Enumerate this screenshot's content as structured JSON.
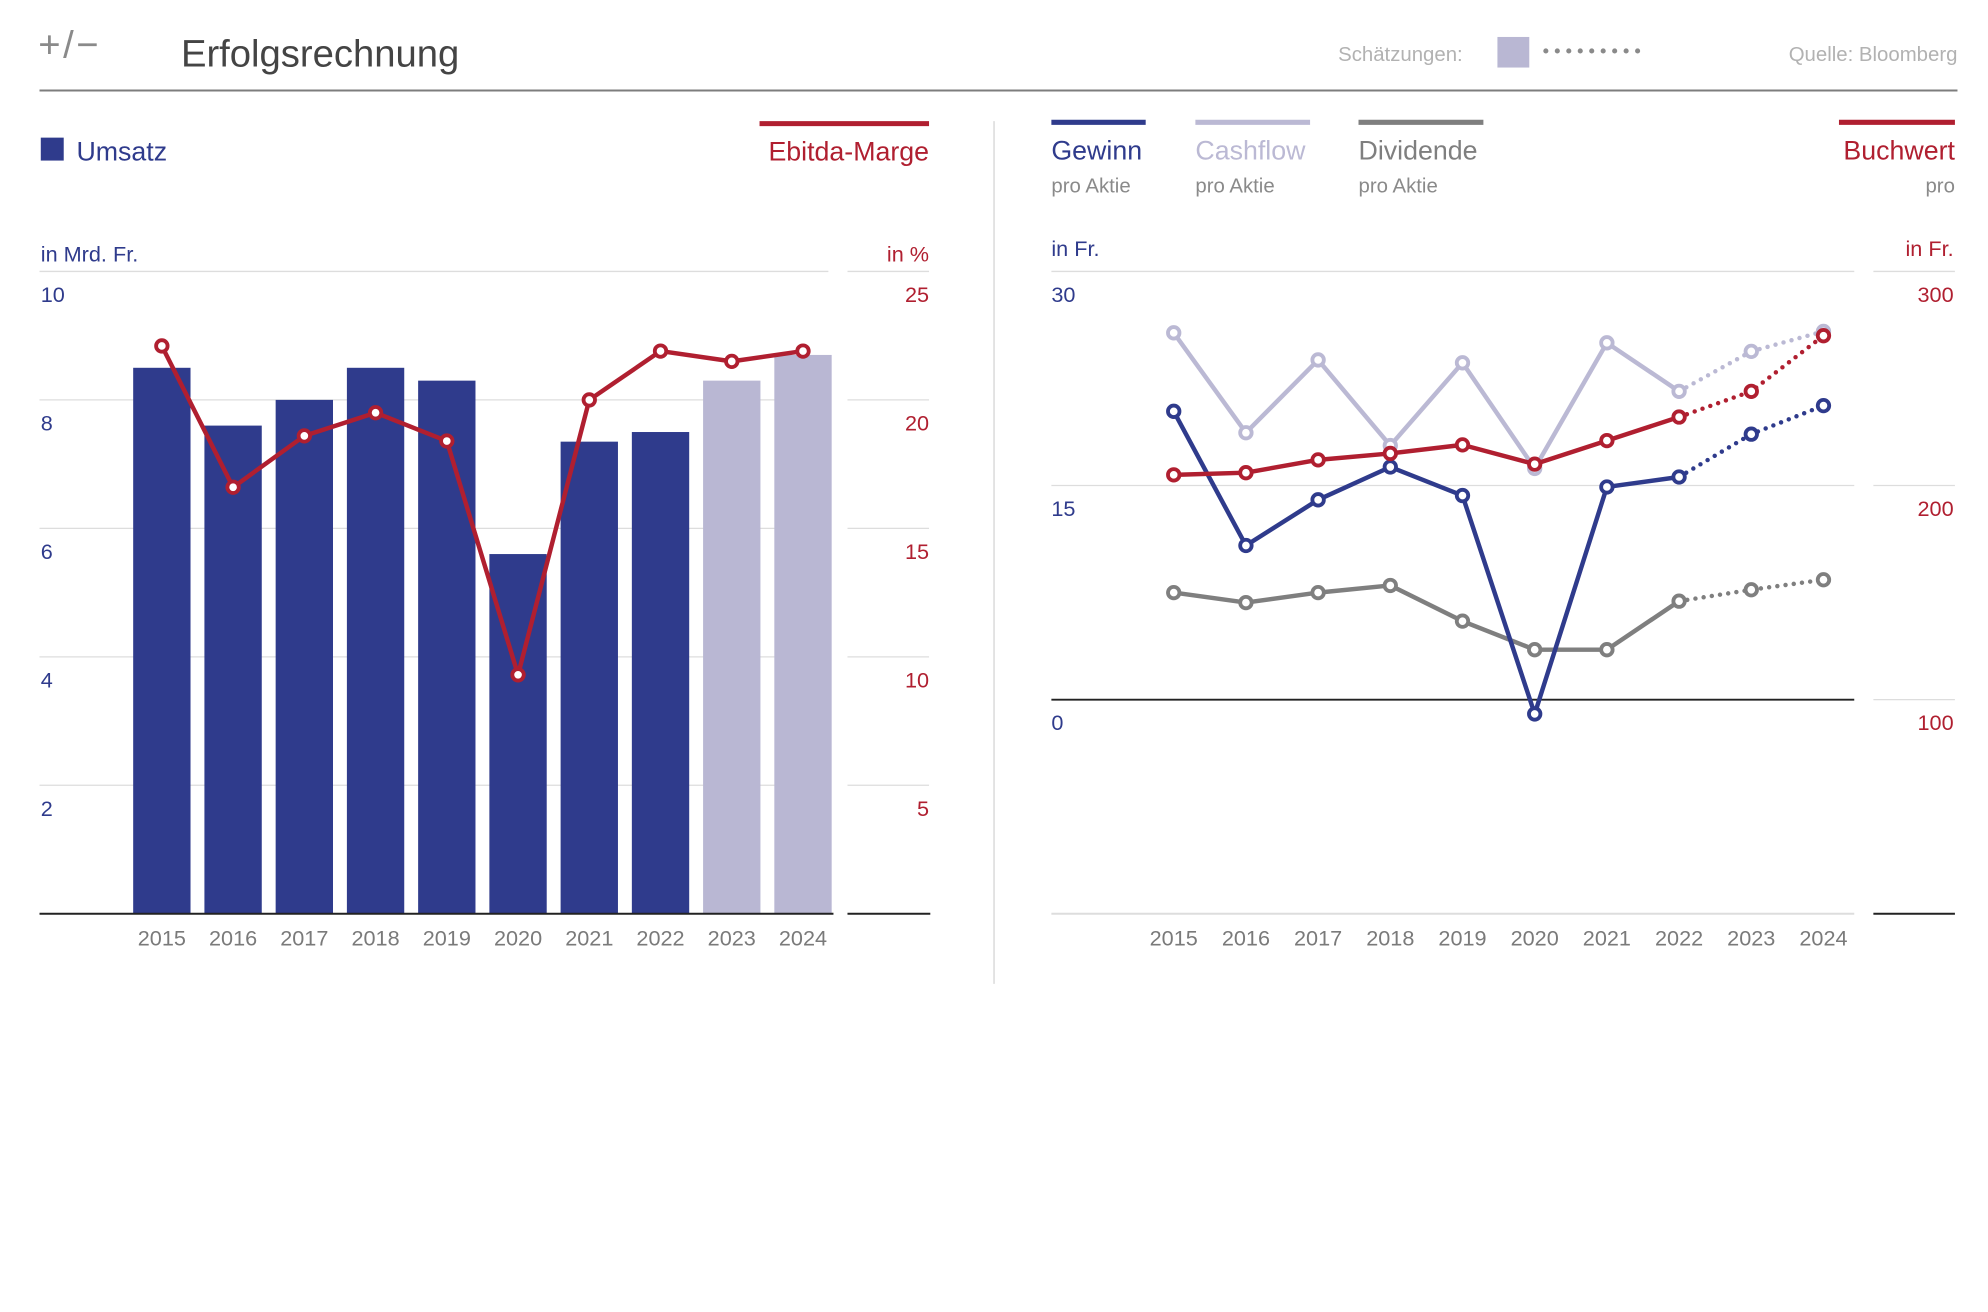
{
  "header": {
    "logo": "+/−",
    "title": "Erfolgsrechnung",
    "estimates_label": "Schätzungen:",
    "source": "Quelle: Bloomberg"
  },
  "colors": {
    "blue": "#2f3b8c",
    "estimate_bar": "#b9b7d3",
    "red": "#b01f30",
    "light": "#bbb9d4",
    "gray": "#7f7f7f",
    "axis_blue": "#2f3b8c",
    "axis_red": "#b01f30"
  },
  "chart_data": [
    {
      "type": "bar",
      "title": "",
      "categories": [
        "2015",
        "2016",
        "2017",
        "2018",
        "2019",
        "2020",
        "2021",
        "2022",
        "2023",
        "2024"
      ],
      "estimate_from_index": 8,
      "series": [
        {
          "name": "Umsatz",
          "unit": "in Mrd. Fr.",
          "axis": "left",
          "type": "bar",
          "values": [
            8.5,
            7.6,
            8.0,
            8.5,
            8.3,
            5.6,
            7.35,
            7.5,
            8.3,
            8.7
          ]
        },
        {
          "name": "Ebitda-Marge",
          "unit": "in %",
          "axis": "right",
          "type": "line",
          "values": [
            22.1,
            16.6,
            18.6,
            19.5,
            18.4,
            9.3,
            20.0,
            21.9,
            21.5,
            21.9
          ]
        }
      ],
      "yleft": {
        "label": "in Mrd. Fr.",
        "ylim": [
          0,
          10
        ],
        "ticks": [
          "2",
          "4",
          "6",
          "8",
          "10"
        ]
      },
      "yright": {
        "label": "in %",
        "ylim": [
          0,
          25
        ],
        "ticks": [
          "5",
          "10",
          "15",
          "20",
          "25"
        ]
      },
      "grid": true,
      "legend": "top"
    },
    {
      "type": "line",
      "title": "",
      "categories": [
        "2015",
        "2016",
        "2017",
        "2018",
        "2019",
        "2020",
        "2021",
        "2022",
        "2023",
        "2024"
      ],
      "estimate_from_index": 8,
      "series": [
        {
          "name": "Gewinn",
          "sub": "pro Aktie",
          "axis": "left",
          "color_key": "blue",
          "values": [
            20.2,
            10.8,
            14.0,
            16.3,
            14.3,
            -1.0,
            14.9,
            15.6,
            18.6,
            20.6
          ]
        },
        {
          "name": "Cashflow",
          "sub": "pro Aktie",
          "axis": "left",
          "color_key": "light",
          "values": [
            25.7,
            18.7,
            23.8,
            17.8,
            23.6,
            16.2,
            25.0,
            21.6,
            24.4,
            25.8
          ]
        },
        {
          "name": "Dividende",
          "sub": "pro Aktie",
          "axis": "left",
          "color_key": "gray",
          "values": [
            7.5,
            6.8,
            7.5,
            8.0,
            5.5,
            3.5,
            3.5,
            6.9,
            7.7,
            8.4
          ]
        },
        {
          "name": "Buchwert",
          "sub": "pro",
          "axis": "right",
          "color_key": "red",
          "values": [
            205,
            206,
            212,
            215,
            219,
            210,
            221,
            232,
            244,
            270
          ]
        }
      ],
      "yleft": {
        "label": "in Fr.",
        "ylim": [
          -15,
          30
        ],
        "ticks": [
          "0",
          "15",
          "30"
        ]
      },
      "yright": {
        "label": "in Fr.",
        "ylim": [
          100,
          300
        ],
        "ticks": [
          "100",
          "200",
          "300"
        ]
      },
      "grid": true,
      "legend": "top"
    }
  ]
}
